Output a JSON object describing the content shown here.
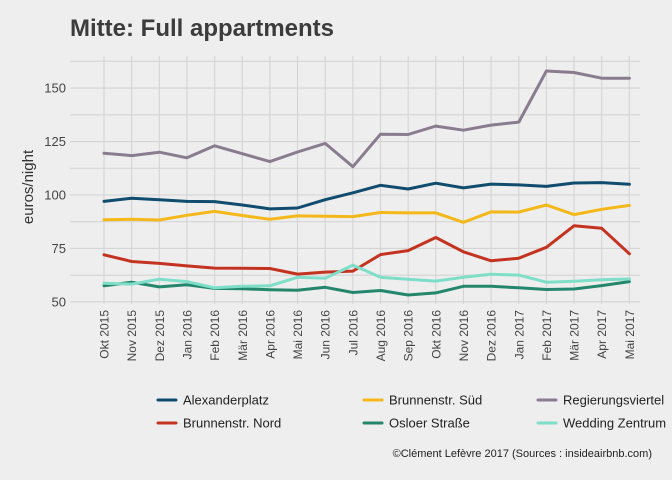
{
  "chart_data": {
    "type": "line",
    "title": "Mitte: Full appartments",
    "xlabel": "",
    "ylabel": "euros/night",
    "ylim": [
      49,
      165
    ],
    "yticks": [
      50,
      75,
      100,
      125,
      150
    ],
    "grid": true,
    "legend_position": "bottom",
    "categories": [
      "Okt 2015",
      "Nov 2015",
      "Dez 2015",
      "Jan 2016",
      "Feb 2016",
      "Mär 2016",
      "Apr 2016",
      "Mai 2016",
      "Jun 2016",
      "Jul 2016",
      "Aug 2016",
      "Sep 2016",
      "Okt 2016",
      "Nov 2016",
      "Dez 2016",
      "Jan 2017",
      "Feb 2017",
      "Mär 2017",
      "Apr 2017",
      "Mai 2017"
    ],
    "series": [
      {
        "name": "Alexanderplatz",
        "color": "#0f4c6e",
        "values": [
          97,
          98.5,
          97.8,
          97,
          96.9,
          95.3,
          93.5,
          93.9,
          97.8,
          101,
          104.5,
          102.8,
          105.5,
          103.3,
          105.1,
          104.7,
          104,
          105.6,
          105.8,
          105
        ]
      },
      {
        "name": "Brunnenstr. Süd",
        "color": "#f5b81a",
        "values": [
          88.4,
          88.6,
          88.3,
          90.5,
          92.3,
          90.4,
          88.6,
          90.2,
          90,
          89.9,
          91.8,
          91.6,
          91.6,
          87.2,
          92.1,
          92,
          95.3,
          90.8,
          93.3,
          95.1
        ]
      },
      {
        "name": "Regierungsviertel",
        "color": "#8a7c8f",
        "values": [
          119.5,
          118.4,
          120,
          117.4,
          123,
          119.3,
          115.6,
          120.1,
          124.1,
          113.2,
          128.4,
          128.3,
          132.2,
          130.3,
          132.7,
          134.1,
          158,
          157.3,
          154.6,
          154.6
        ]
      },
      {
        "name": "Brunnenstr. Nord",
        "color": "#c43320",
        "values": [
          72,
          68.9,
          68,
          66.8,
          65.8,
          65.7,
          65.6,
          63,
          63.9,
          64.4,
          72.1,
          74,
          80.1,
          73.4,
          69.2,
          70.4,
          75.5,
          85.6,
          84.4,
          72.5
        ]
      },
      {
        "name": "Osloer Straße",
        "color": "#24876b",
        "values": [
          57.5,
          59.2,
          57,
          58,
          56.3,
          56.1,
          55.7,
          55.4,
          56.8,
          54.4,
          55.3,
          53.2,
          54.2,
          57.3,
          57.3,
          56.6,
          55.8,
          56,
          57.6,
          59.5
        ]
      },
      {
        "name": "Wedding Zentrum",
        "color": "#7fdec8",
        "values": [
          58.7,
          58.3,
          60.6,
          59.5,
          56.6,
          57.3,
          57.5,
          61.5,
          61,
          67.2,
          61.5,
          60.6,
          59.7,
          61.5,
          62.9,
          62.5,
          59.2,
          59.6,
          60.3,
          60.7
        ]
      }
    ],
    "caption": "©Clément Lefèvre 2017 (Sources : insideairbnb.com)"
  }
}
